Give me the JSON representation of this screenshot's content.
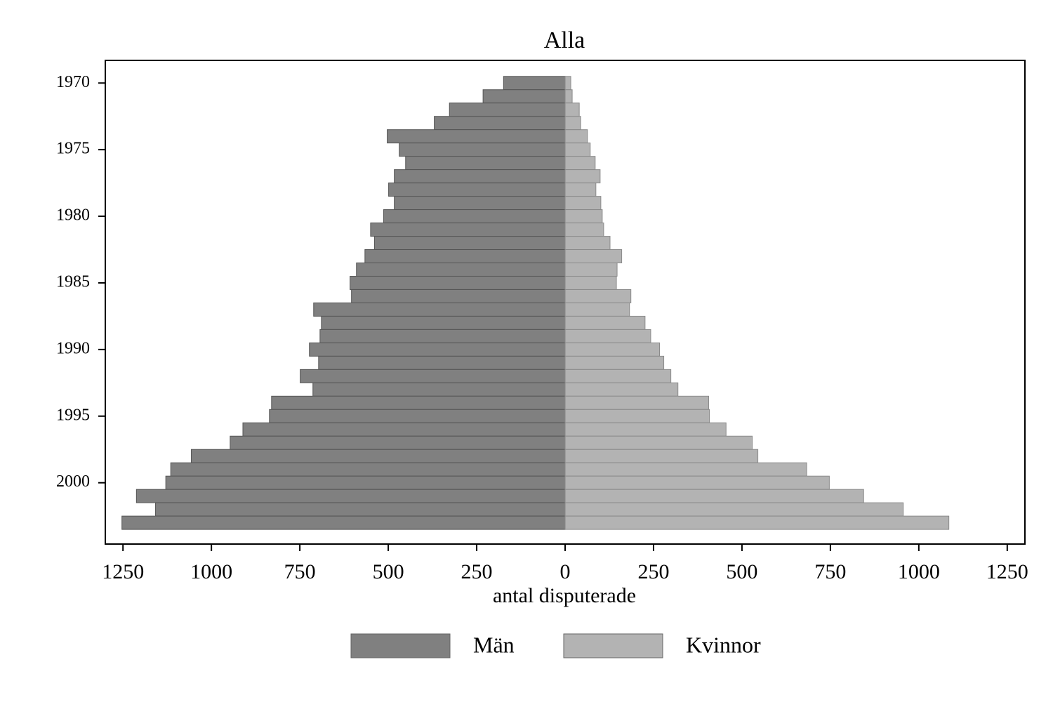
{
  "chart_data": {
    "type": "pyramid",
    "title": "Alla",
    "x_label": "antal disputerade",
    "years": [
      1970,
      1971,
      1972,
      1973,
      1974,
      1975,
      1976,
      1977,
      1978,
      1979,
      1980,
      1981,
      1982,
      1983,
      1984,
      1985,
      1986,
      1987,
      1988,
      1989,
      1990,
      1991,
      1992,
      1993,
      1994,
      1995,
      1996,
      1997,
      1998,
      1999,
      2000,
      2001,
      2002,
      2003
    ],
    "series": [
      {
        "name": "Män",
        "color": "#808080",
        "side": "left",
        "values": [
          174,
          232,
          327,
          370,
          503,
          469,
          451,
          483,
          499,
          483,
          513,
          550,
          539,
          566,
          590,
          608,
          604,
          711,
          689,
          693,
          723,
          697,
          749,
          713,
          830,
          836,
          911,
          947,
          1057,
          1115,
          1129,
          1212,
          1158,
          1253
        ]
      },
      {
        "name": "Kvinnor",
        "color": "#b3b3b3",
        "side": "right",
        "values": [
          16,
          20,
          40,
          44,
          63,
          71,
          85,
          99,
          87,
          101,
          105,
          109,
          127,
          160,
          147,
          145,
          186,
          182,
          226,
          242,
          267,
          279,
          299,
          319,
          406,
          408,
          455,
          529,
          545,
          683,
          747,
          844,
          956,
          1085
        ]
      }
    ],
    "xlim": [
      -1300,
      1300
    ],
    "xticks": [
      {
        "value": -1250,
        "label": "1250"
      },
      {
        "value": -1000,
        "label": "1000"
      },
      {
        "value": -750,
        "label": "750"
      },
      {
        "value": -500,
        "label": "500"
      },
      {
        "value": -250,
        "label": "250"
      },
      0,
      250,
      500,
      750,
      1000,
      1250
    ],
    "ylim": [
      1968.3,
      2004.6
    ],
    "yticks": [
      1970,
      1975,
      1980,
      1985,
      1990,
      1995,
      2000
    ],
    "legend": "bottom"
  }
}
